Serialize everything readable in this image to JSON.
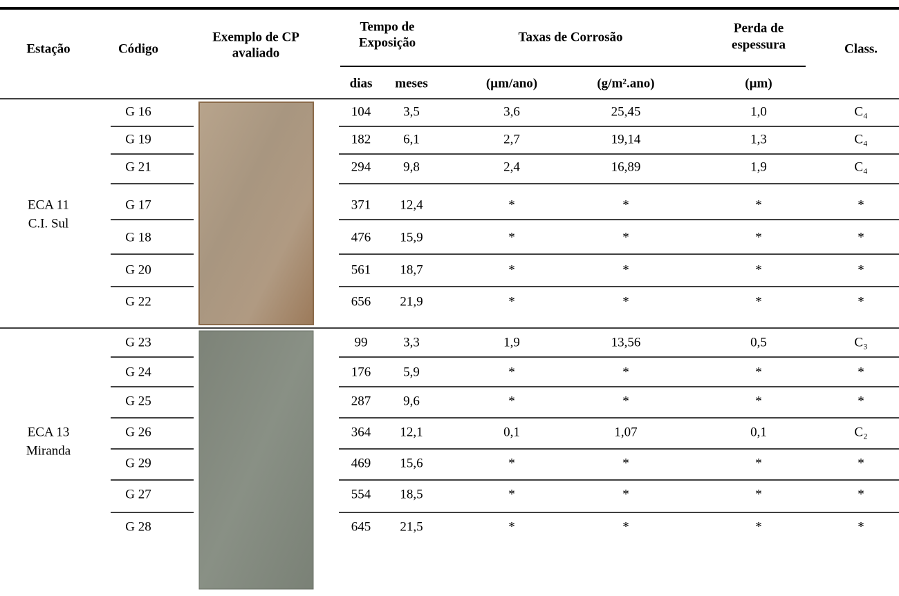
{
  "table": {
    "header": {
      "estacao": "Estação",
      "codigo": "Código",
      "exemplo": [
        "Exemplo de CP",
        "avaliado"
      ],
      "tempo": [
        "Tempo de",
        "Exposição"
      ],
      "taxas": "Taxas de Corrosão",
      "perda": [
        "Perda de",
        "espessura"
      ],
      "class": "Class.",
      "units": [
        "dias",
        "meses",
        "(µm/ano)",
        "(g/m².ano)",
        "(µm)"
      ]
    },
    "blocks": [
      {
        "station": [
          "ECA 11",
          "C.I. Sul"
        ],
        "rows": [
          [
            "G 16",
            "104",
            "3,5",
            "3,6",
            "25,45",
            "1,0",
            "C₄"
          ],
          [
            "G 19",
            "182",
            "6,1",
            "2,7",
            "19,14",
            "1,3",
            "C₄"
          ],
          [
            "G 21",
            "294",
            "9,8",
            "2,4",
            "16,89",
            "1,9",
            "C₄"
          ],
          [
            "G 17",
            "371",
            "12,4",
            "*",
            "*",
            "*",
            "*"
          ],
          [
            "G 18",
            "476",
            "15,9",
            "*",
            "*",
            "*",
            "*"
          ],
          [
            "G 20",
            "561",
            "18,7",
            "*",
            "*",
            "*",
            "*"
          ],
          [
            "G 22",
            "656",
            "21,9",
            "*",
            "*",
            "*",
            "*"
          ]
        ]
      },
      {
        "station": [
          "ECA 13",
          "Miranda"
        ],
        "rows": [
          [
            "G 23",
            "99",
            "3,3",
            "1,9",
            "13,56",
            "0,5",
            "C₃"
          ],
          [
            "G 24",
            "176",
            "5,9",
            "*",
            "*",
            "*",
            "*"
          ],
          [
            "G 25",
            "287",
            "9,6",
            "*",
            "*",
            "*",
            "*"
          ],
          [
            "G 26",
            "364",
            "12,1",
            "0,1",
            "1,07",
            "0,1",
            "C₂"
          ],
          [
            "G 29",
            "469",
            "15,6",
            "*",
            "*",
            "*",
            "*"
          ],
          [
            "G 27",
            "554",
            "18,5",
            "*",
            "*",
            "*",
            "*"
          ],
          [
            "G 28",
            "645",
            "21,5",
            "*",
            "*",
            "*",
            "*"
          ]
        ]
      }
    ]
  }
}
